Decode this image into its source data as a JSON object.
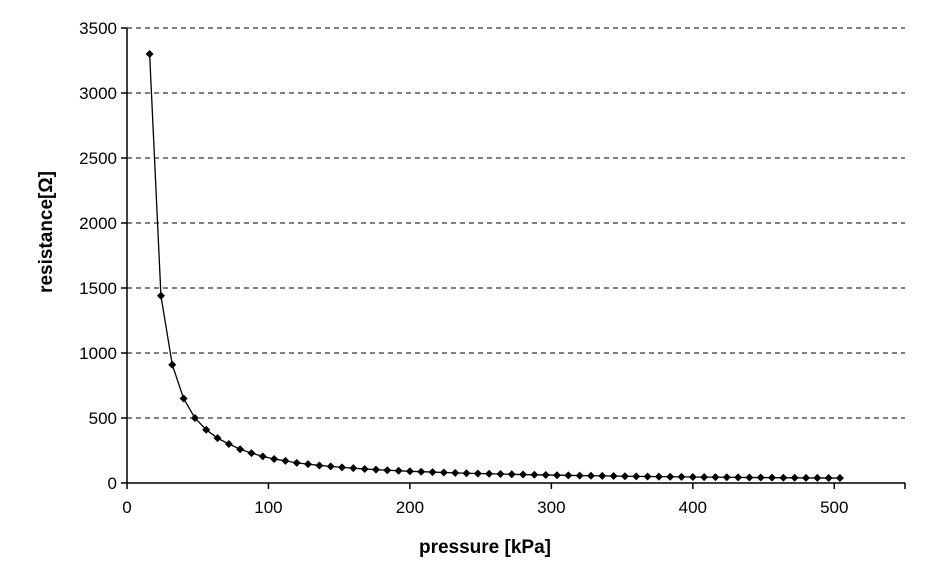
{
  "chart_data": {
    "type": "line",
    "title": "",
    "xlabel": "pressure [kPa]",
    "ylabel": "resistance[Ω]",
    "xlim": [
      0,
      550
    ],
    "ylim": [
      0,
      3500
    ],
    "xticks": [
      0,
      100,
      200,
      300,
      400,
      500
    ],
    "xtick_labels": [
      "0",
      "100",
      "200",
      "300",
      "400",
      "500"
    ],
    "yticks": [
      0,
      500,
      1000,
      1500,
      2000,
      2500,
      3000,
      3500
    ],
    "ytick_labels": [
      "0",
      "500",
      "1000",
      "1500",
      "2000",
      "2500",
      "3000",
      "3500"
    ],
    "grid": "horizontal dashed",
    "legend": "none",
    "marker": "diamond",
    "color": "#000000",
    "series": [
      {
        "x": [
          16,
          24,
          32,
          40,
          48,
          56,
          64,
          72,
          80,
          88,
          96,
          104,
          112,
          120,
          128,
          136,
          144,
          152,
          160,
          168,
          176,
          184,
          192,
          200,
          208,
          216,
          224,
          232,
          240,
          248,
          256,
          264,
          272,
          280,
          288,
          296,
          304,
          312,
          320,
          328,
          336,
          344,
          352,
          360,
          368,
          376,
          384,
          392,
          400,
          408,
          416,
          424,
          432,
          440,
          448,
          456,
          464,
          472,
          480,
          488,
          496,
          504
        ],
        "y": [
          3300,
          1440,
          910,
          650,
          500,
          410,
          345,
          300,
          260,
          230,
          205,
          185,
          170,
          155,
          145,
          135,
          128,
          120,
          114,
          108,
          103,
          98,
          94,
          90,
          87,
          84,
          81,
          78,
          75,
          73,
          71,
          69,
          67,
          65,
          63,
          62,
          60,
          59,
          57,
          56,
          55,
          54,
          52,
          51,
          50,
          49,
          48,
          47,
          46,
          45,
          45,
          44,
          43,
          42,
          42,
          41,
          40,
          40,
          39,
          39,
          38,
          38
        ]
      }
    ]
  }
}
